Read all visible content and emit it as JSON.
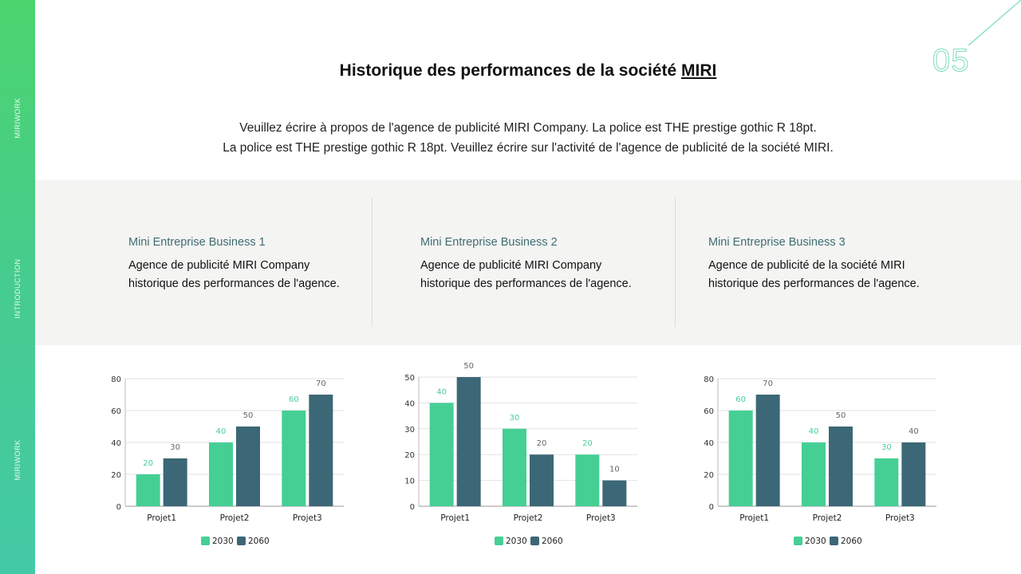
{
  "sidebar": {
    "labels": [
      "MIRIWORK",
      "INTRODUCTION",
      "MIRIWORK"
    ]
  },
  "page_number": "05",
  "header": {
    "title": "Historique des performances de la société ",
    "title_underlined": "MIRI"
  },
  "description": [
    "Veuillez écrire à propos de l'agence de publicité MIRI Company. La police est THE prestige gothic R 18pt.",
    "La police est THE prestige gothic R 18pt. Veuillez écrire sur l'activité de l'agence de publicité de la société MIRI."
  ],
  "columns": [
    {
      "heading": "Mini Entreprise Business 1",
      "lines": [
        "Agence de publicité MIRI Company",
        "historique des performances de l'agence."
      ]
    },
    {
      "heading": "Mini Entreprise Business 2",
      "lines": [
        "Agence de publicité MIRI Company",
        "historique des performances de l'agence."
      ]
    },
    {
      "heading": "Mini Entreprise Business 3",
      "lines": [
        "Agence de publicité de la société MIRI",
        "historique des performances de l'agence."
      ]
    }
  ],
  "colors": {
    "2030": "#45cf95",
    "2060": "#3c6776"
  },
  "chart_data": [
    {
      "type": "bar",
      "categories": [
        "Projet1",
        "Projet2",
        "Projet3"
      ],
      "ylim": [
        0,
        80
      ],
      "yticks": [
        0,
        20,
        40,
        60,
        80
      ],
      "grid": true,
      "legend": "bottom",
      "series": [
        {
          "name": "2030",
          "values": [
            20,
            40,
            60
          ]
        },
        {
          "name": "2060",
          "values": [
            30,
            50,
            70
          ]
        }
      ]
    },
    {
      "type": "bar",
      "categories": [
        "Projet1",
        "Projet2",
        "Projet3"
      ],
      "ylim": [
        0,
        50
      ],
      "yticks": [
        0,
        10,
        20,
        30,
        40,
        50
      ],
      "grid": true,
      "legend": "bottom",
      "series": [
        {
          "name": "2030",
          "values": [
            40,
            30,
            20
          ]
        },
        {
          "name": "2060",
          "values": [
            50,
            20,
            10
          ]
        }
      ]
    },
    {
      "type": "bar",
      "categories": [
        "Projet1",
        "Projet2",
        "Projet3"
      ],
      "ylim": [
        0,
        80
      ],
      "yticks": [
        0,
        20,
        40,
        60,
        80
      ],
      "grid": true,
      "legend": "bottom",
      "series": [
        {
          "name": "2030",
          "values": [
            60,
            40,
            30
          ]
        },
        {
          "name": "2060",
          "values": [
            70,
            50,
            40
          ]
        }
      ]
    }
  ]
}
